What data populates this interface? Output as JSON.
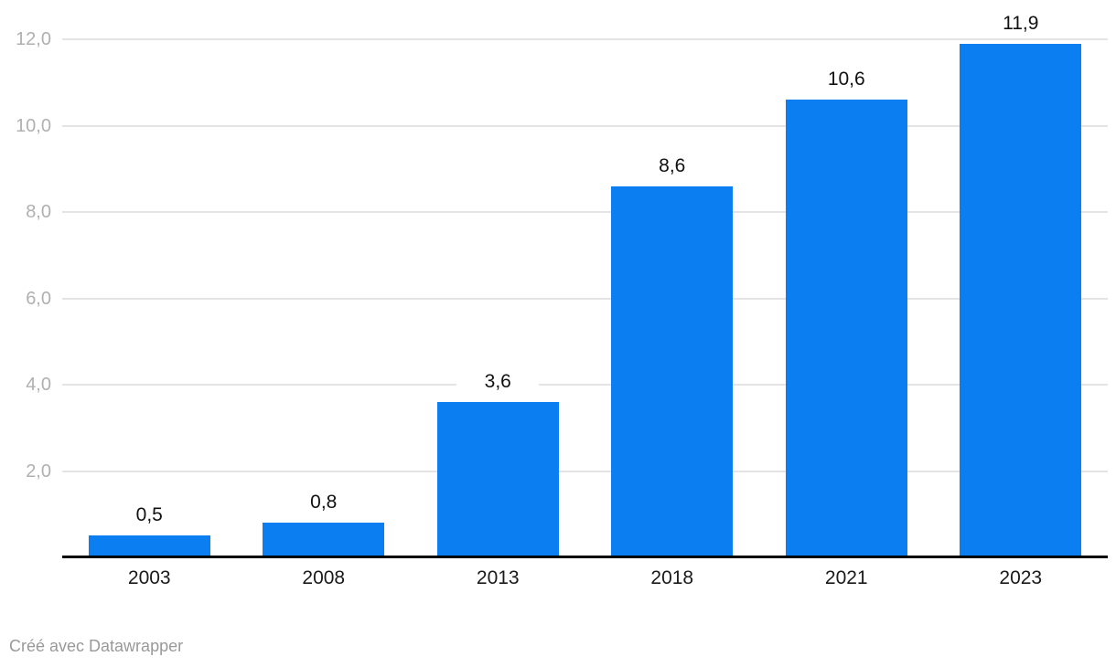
{
  "chart_data": {
    "type": "bar",
    "categories": [
      "2003",
      "2008",
      "2013",
      "2018",
      "2021",
      "2023"
    ],
    "values": [
      0.5,
      0.8,
      3.6,
      8.6,
      10.6,
      11.9
    ],
    "value_labels": [
      "0,5",
      "0,8",
      "3,6",
      "8,6",
      "10,6",
      "11,9"
    ],
    "y_ticks": {
      "values": [
        2,
        4,
        6,
        8,
        10,
        12
      ],
      "labels": [
        "2,0",
        "4,0",
        "6,0",
        "8,0",
        "10,0",
        "12,0"
      ]
    },
    "title": "",
    "xlabel": "",
    "ylabel": "",
    "ylim": [
      0,
      12.9
    ],
    "grid": true,
    "legend_position": "none",
    "bar_color": "#0b7ef2"
  },
  "footer": {
    "credit": "Créé avec Datawrapper"
  }
}
